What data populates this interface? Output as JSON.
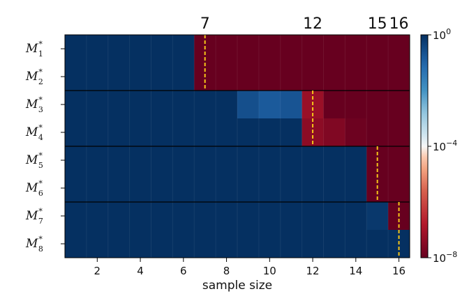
{
  "chart_data": {
    "type": "heatmap",
    "xlabel": "sample size",
    "x": [
      1,
      2,
      3,
      4,
      5,
      6,
      7,
      8,
      9,
      10,
      11,
      12,
      13,
      14,
      15,
      16
    ],
    "xticks": [
      "2",
      "4",
      "6",
      "8",
      "10",
      "12",
      "14",
      "16"
    ],
    "rows": [
      {
        "label": "M",
        "subscript": "1",
        "superscript": "*",
        "threshold": 7,
        "log10_values": [
          0,
          0,
          0,
          0,
          0,
          0,
          -8,
          -8,
          -8,
          -8,
          -8,
          -8,
          -8,
          -8,
          -8,
          -8
        ]
      },
      {
        "label": "M",
        "subscript": "2",
        "superscript": "*",
        "threshold": 7,
        "log10_values": [
          0,
          0,
          0,
          0,
          0,
          0,
          -8,
          -8,
          -8,
          -8,
          -8,
          -8,
          -8,
          -8,
          -8,
          -8
        ]
      },
      {
        "label": "M",
        "subscript": "3",
        "superscript": "*",
        "threshold": 12,
        "log10_values": [
          0,
          0,
          0,
          0,
          0,
          0,
          0,
          0,
          -0.6,
          -0.8,
          -0.7,
          -7.2,
          -8,
          -8,
          -8,
          -8
        ]
      },
      {
        "label": "M",
        "subscript": "4",
        "superscript": "*",
        "threshold": 12,
        "log10_values": [
          0,
          0,
          0,
          0,
          0,
          0,
          0,
          0,
          0,
          0,
          0,
          -7.4,
          -7.6,
          -7.9,
          -8,
          -8
        ]
      },
      {
        "label": "M",
        "subscript": "5",
        "superscript": "*",
        "threshold": 15,
        "log10_values": [
          0,
          0,
          0,
          0,
          0,
          0,
          0,
          0,
          0,
          0,
          0,
          0,
          0,
          0,
          -8,
          -8
        ]
      },
      {
        "label": "M",
        "subscript": "6",
        "superscript": "*",
        "threshold": 15,
        "log10_values": [
          0,
          0,
          0,
          0,
          0,
          0,
          0,
          0,
          0,
          0,
          0,
          0,
          0,
          0,
          -8,
          -8
        ]
      },
      {
        "label": "M",
        "subscript": "7",
        "superscript": "*",
        "threshold": 16,
        "log10_values": [
          0,
          0,
          0,
          0,
          0,
          0,
          0,
          0,
          0,
          0,
          0,
          0,
          0,
          0,
          -0.15,
          -8
        ]
      },
      {
        "label": "M",
        "subscript": "8",
        "superscript": "*",
        "threshold": 16,
        "log10_values": [
          0,
          0,
          0,
          0,
          0,
          0,
          0,
          0,
          0,
          0,
          0,
          0,
          0,
          0,
          0,
          0
        ]
      }
    ],
    "threshold_labels": [
      "7",
      "12",
      "15",
      "16"
    ],
    "threshold_positions": [
      7,
      12,
      15,
      16
    ],
    "colorbar": {
      "scale": "log",
      "range": [
        -8,
        0
      ],
      "ticks": [
        {
          "value": 0,
          "base": "10",
          "exp": "0"
        },
        {
          "value": -4,
          "base": "10",
          "exp": "−4"
        },
        {
          "value": -8,
          "base": "10",
          "exp": "−8"
        }
      ],
      "colormap": "RdBu",
      "colors": {
        "high": "#053061",
        "mid": "#f7f7f7",
        "low": "#67001f"
      }
    },
    "divider_color": "#000000",
    "threshold_line_color": "#f5c518",
    "grid": false
  }
}
